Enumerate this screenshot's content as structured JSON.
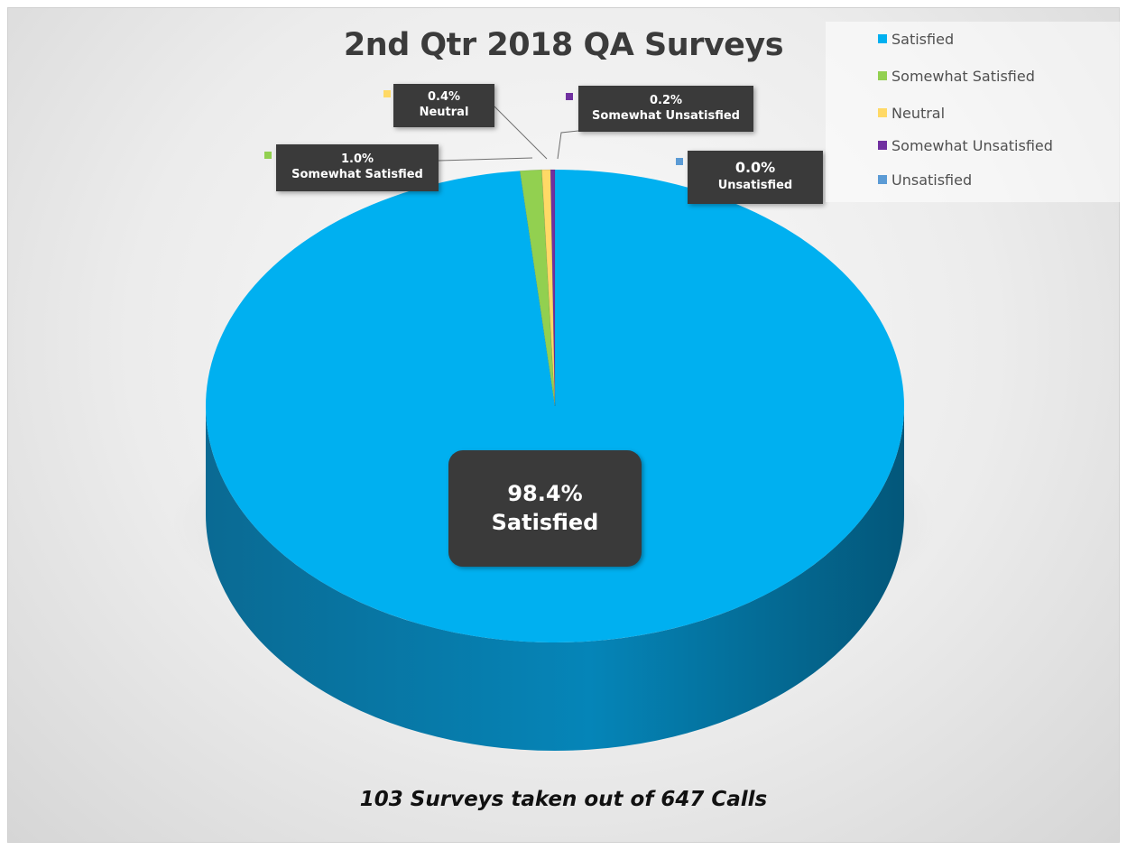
{
  "chart_data": {
    "type": "pie",
    "title": "2nd Qtr 2018 QA Surveys",
    "subtitle": "103 Surveys taken out of 647 Calls",
    "categories": [
      "Satisfied",
      "Somewhat Satisfied",
      "Neutral",
      "Somewhat Unsatisfied",
      "Unsatisfied"
    ],
    "values": [
      98.4,
      1.0,
      0.4,
      0.2,
      0.0
    ],
    "value_labels": [
      "98.4%",
      "1.0%",
      "0.4%",
      "0.2%",
      "0.0%"
    ],
    "colors": [
      "#00B0F0",
      "#92D050",
      "#FFD966",
      "#7030A0",
      "#5B9BD5"
    ],
    "legend_position": "top-right",
    "style": "3d"
  },
  "legend": {
    "items": [
      "Satisfied",
      "Somewhat Satisfied",
      "Neutral",
      "Somewhat Unsatisfied",
      "Unsatisfied"
    ]
  },
  "labels": {
    "satisfied": {
      "pct": "98.4%",
      "name": "Satisfied"
    },
    "somewhat_satisfied": {
      "pct": "1.0%",
      "name": "Somewhat Satisfied"
    },
    "neutral": {
      "pct": "0.4%",
      "name": "Neutral"
    },
    "somewhat_unsatisfied": {
      "pct": "0.2%",
      "name": "Somewhat Unsatisfied"
    },
    "unsatisfied": {
      "pct": "0.0%",
      "name": "Unsatisfied"
    }
  }
}
